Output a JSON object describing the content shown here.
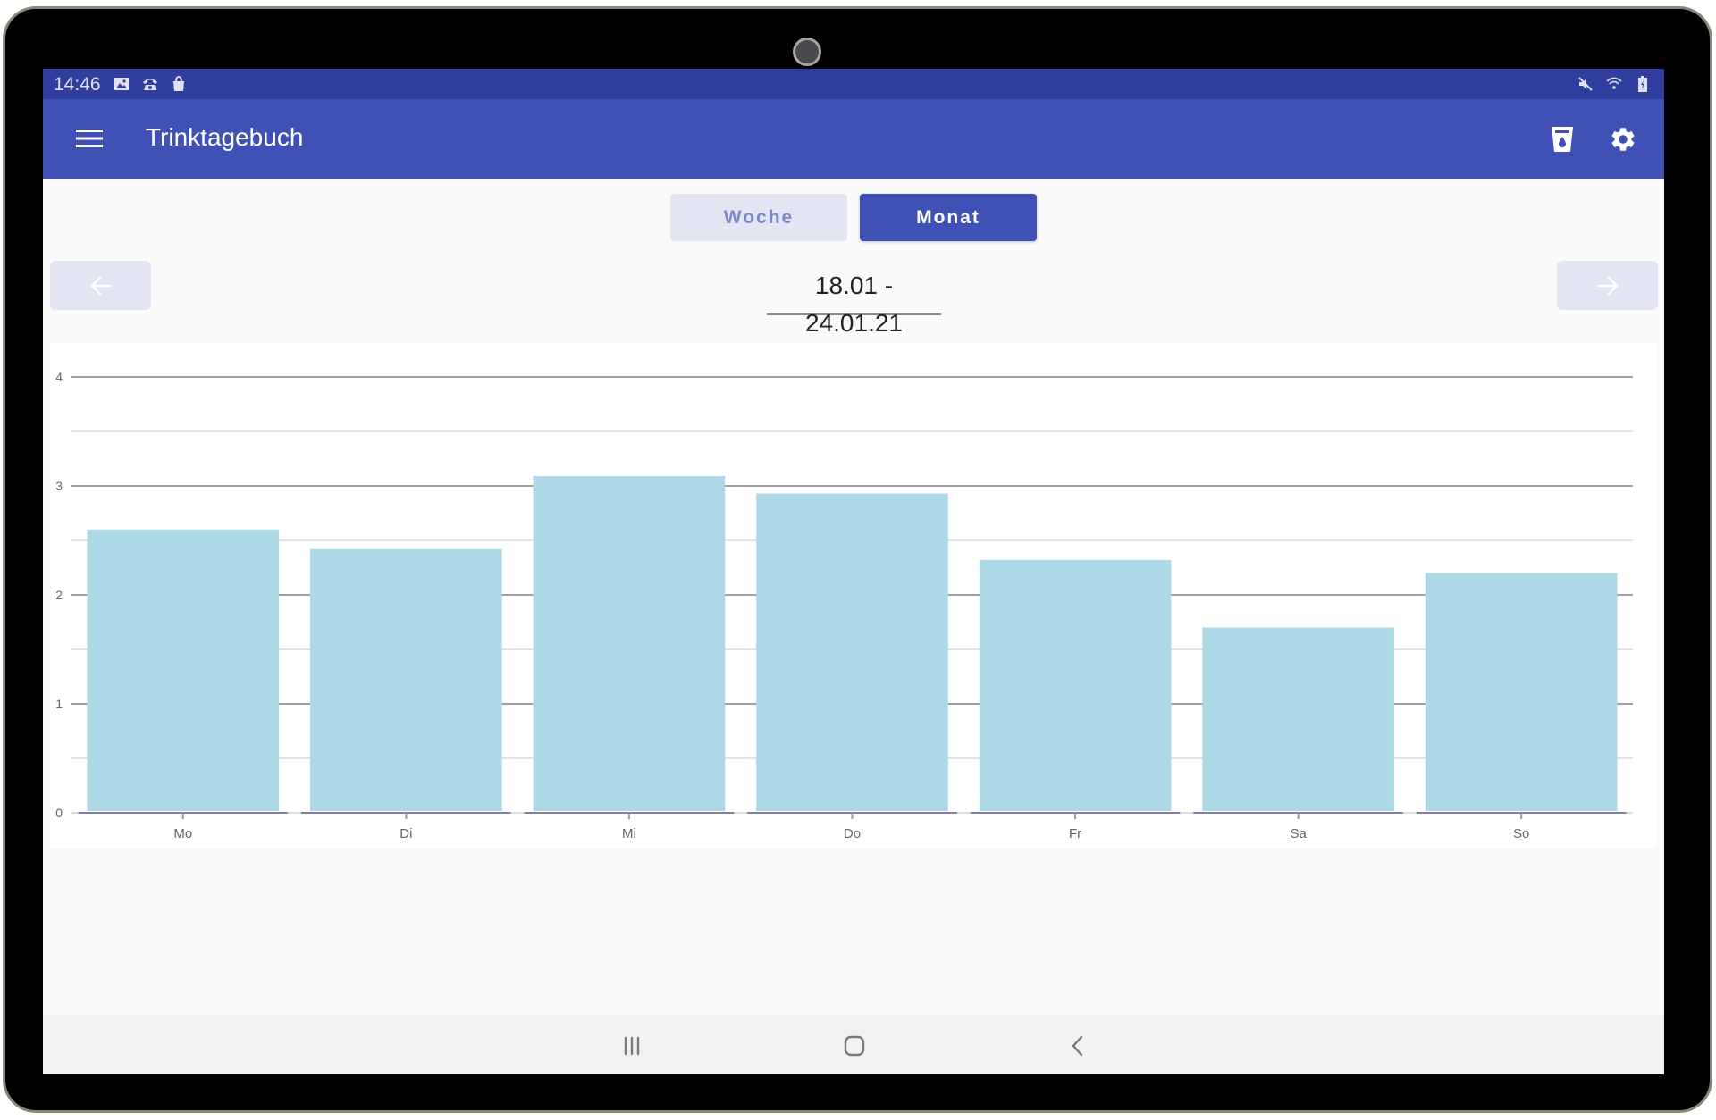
{
  "status_bar": {
    "time": "14:46",
    "left_icons": [
      "image-icon",
      "phone-icon",
      "shopping-bag-icon"
    ],
    "right_icons": [
      "mute-icon",
      "wifi-icon",
      "battery-charging-icon"
    ]
  },
  "app_bar": {
    "title": "Trinktagebuch",
    "menu_icon": "hamburger-menu-icon",
    "actions": [
      "water-glass-icon",
      "gear-icon"
    ]
  },
  "period_toggle": {
    "options": [
      {
        "label": "Woche",
        "active": false
      },
      {
        "label": "Monat",
        "active": true
      }
    ]
  },
  "date_range": {
    "value": "18.01 - 24.01.21",
    "prev_icon": "arrow-left-icon",
    "next_icon": "arrow-right-icon"
  },
  "colors": {
    "primary": "#3f51b5",
    "primary_dark": "#303f9f",
    "bar": "#add8e6",
    "toggle_inactive_bg": "#e3e5f2",
    "toggle_inactive_text": "#7f89c7"
  },
  "chart_data": {
    "type": "bar",
    "title": "",
    "xlabel": "",
    "ylabel": "",
    "categories": [
      "Mo",
      "Di",
      "Mi",
      "Do",
      "Fr",
      "Sa",
      "So"
    ],
    "values": [
      2.6,
      2.42,
      3.09,
      2.93,
      2.32,
      1.7,
      2.2
    ],
    "yticks": [
      0,
      1,
      2,
      3,
      4
    ],
    "ylim": [
      0,
      4
    ],
    "grid": true,
    "minor_grid": [
      0.5,
      1.5,
      2.5,
      3.5
    ],
    "legend": null,
    "bar_color": "#add8e6"
  },
  "system_nav": {
    "buttons": [
      "recent-apps-icon",
      "home-icon",
      "back-icon"
    ]
  }
}
